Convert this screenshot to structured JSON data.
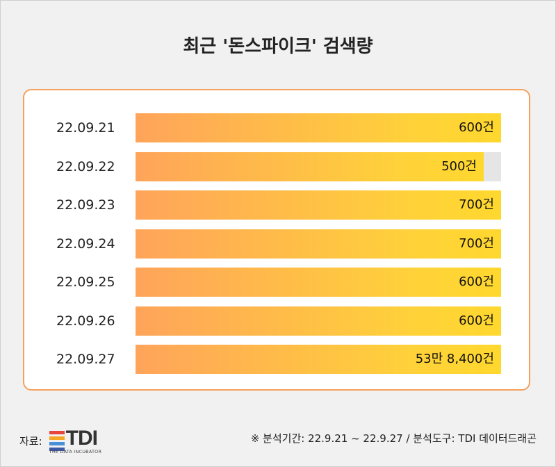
{
  "chart_data": {
    "type": "bar",
    "orientation": "horizontal",
    "title": "최근 '돈스파이크' 검색량",
    "categories": [
      "22.09.21",
      "22.09.22",
      "22.09.23",
      "22.09.24",
      "22.09.25",
      "22.09.26",
      "22.09.27"
    ],
    "values": [
      600,
      500,
      700,
      700,
      600,
      600,
      538400
    ],
    "value_labels": [
      "600건",
      "500건",
      "700건",
      "700건",
      "600건",
      "600건",
      "53만 8,400건"
    ],
    "colors": {
      "bar_start": "#ffa45a",
      "bar_end": "#ffd82e",
      "track": "#e5e5e5",
      "card_border": "#f5a15c"
    }
  },
  "footer": {
    "source_label": "자료:",
    "logo_text": "TDI",
    "logo_subtext": "THE DATA INCUBATOR",
    "logo_stripe_colors": [
      "#e8453c",
      "#f5a623",
      "#4a90d9",
      "#3b5ba9"
    ],
    "note": "※ 분석기간: 22.9.21 ~ 22.9.27 / 분석도구: TDI 데이터드래곤"
  }
}
